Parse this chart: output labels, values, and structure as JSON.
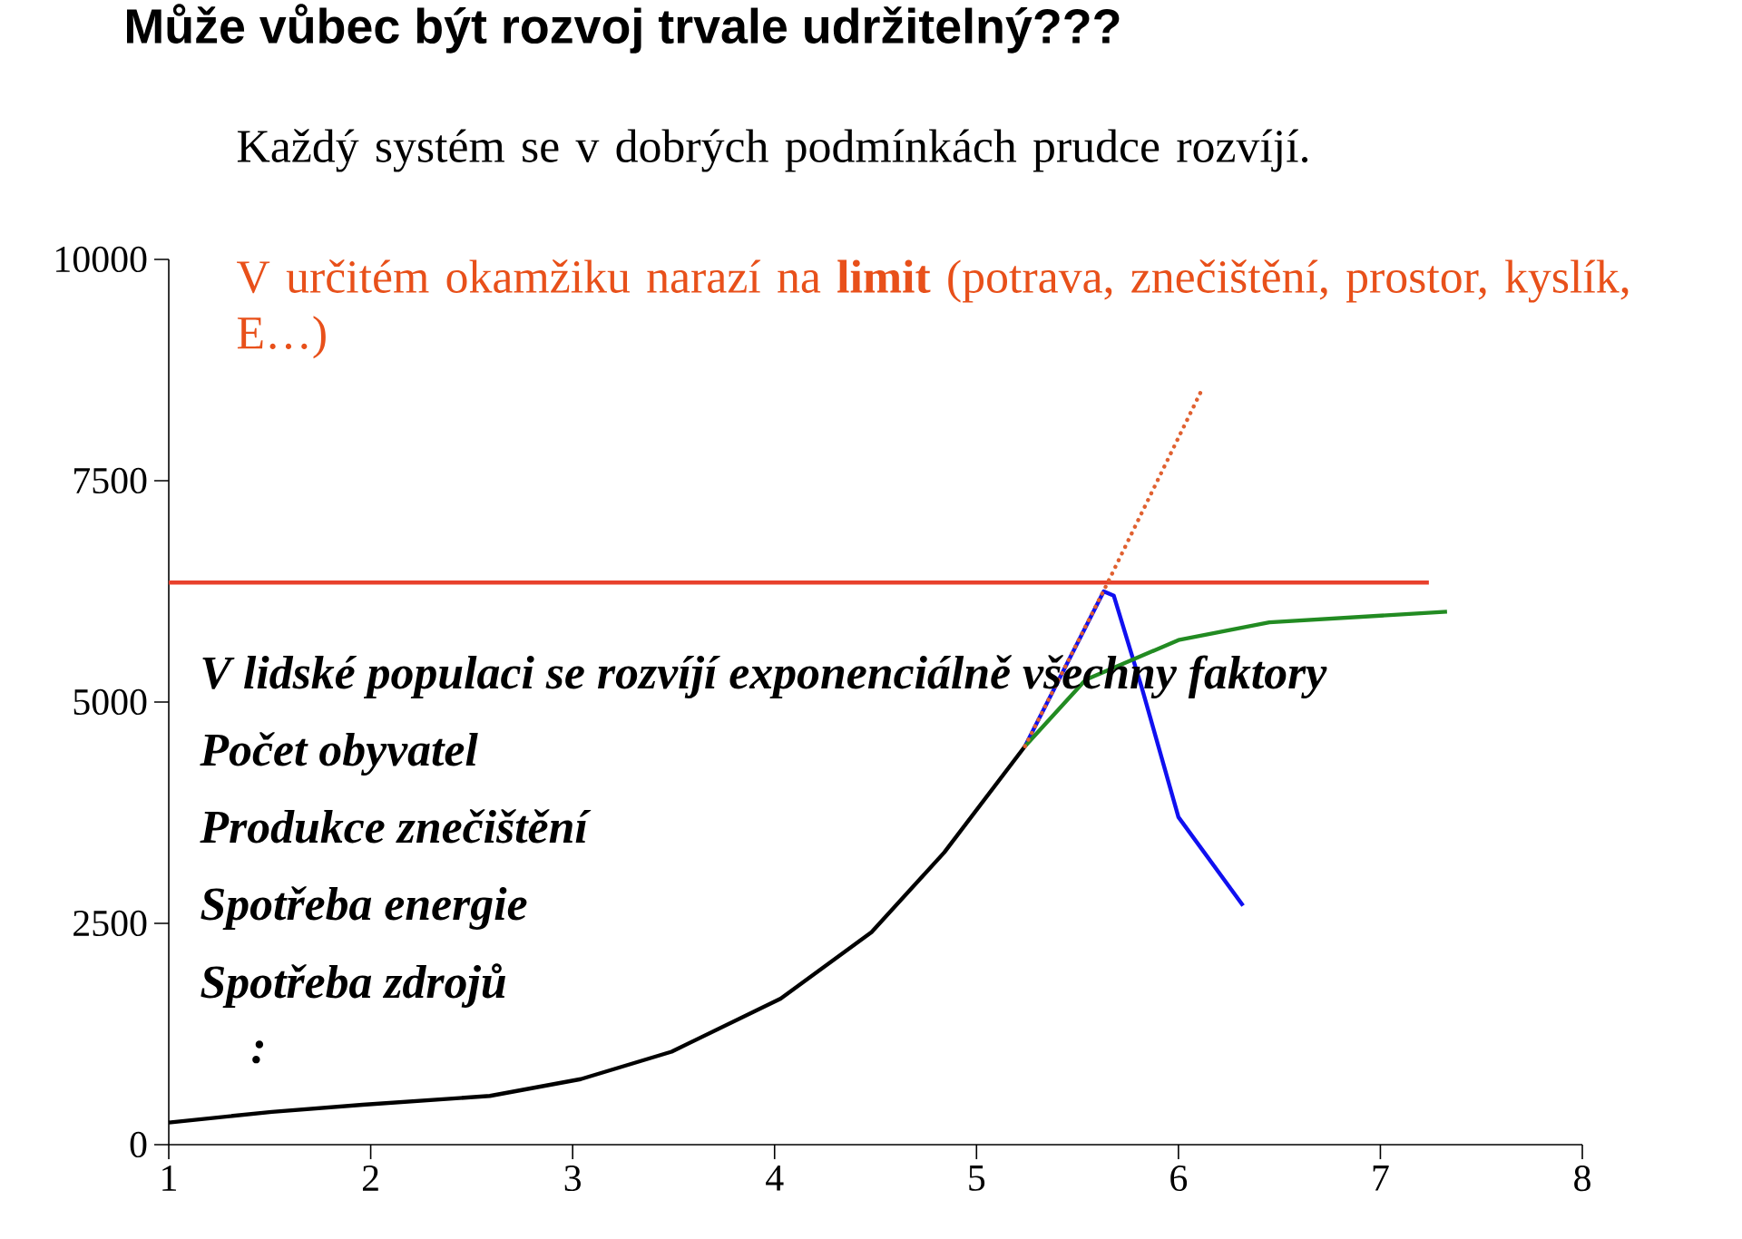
{
  "chart_data": {
    "type": "line",
    "title": "Může vůbec být rozvoj trvale udržitelný???",
    "annotations": [
      "Každý systém se v dobrých podmínkách prudce rozvíjí.",
      "V určitém okamžiku narazí na **limit** (potrava, znečištění, prostor, kyslík, E…)",
      "*V lidské populaci se rozvíjí exponenciálně všechny faktory*",
      "*Počet obyvatel*",
      "*Produkce znečištění*",
      "*Spotřeba energie*",
      "*Spotřeba zdrojů*",
      "*:*"
    ],
    "xlim": [
      1,
      8
    ],
    "xticks": [
      1,
      2,
      3,
      4,
      5,
      6,
      7,
      8
    ],
    "ylim": [
      0,
      10000
    ],
    "yticks": [
      0,
      2500,
      5000,
      7500,
      10000
    ],
    "series": [
      {
        "color": "#000000",
        "x": [
          1,
          1.51,
          1.96,
          2.59,
          3.04,
          3.49,
          4.03,
          4.48,
          4.84,
          5.24
        ],
        "values": [
          250,
          370,
          450,
          550,
          740,
          1050,
          1650,
          2400,
          3300,
          4500
        ]
      },
      {
        "color": "#e8412c",
        "x": [
          1,
          7.24
        ],
        "values": [
          6350,
          6350
        ]
      },
      {
        "color": "#1010f0",
        "x": [
          5.24,
          5.63,
          5.68,
          5.82,
          6.0,
          6.32
        ],
        "values": [
          4500,
          6250,
          6200,
          5150,
          3700,
          2700
        ]
      },
      {
        "color": "#228b22",
        "x": [
          5.24,
          5.54,
          6.0,
          6.45,
          7.33
        ],
        "values": [
          4500,
          5250,
          5700,
          5900,
          6020
        ]
      },
      {
        "color": "#e06030",
        "line_style": "dotted",
        "x": [
          5.24,
          5.65,
          6.11
        ],
        "values": [
          4500,
          6350,
          8500
        ]
      }
    ]
  }
}
